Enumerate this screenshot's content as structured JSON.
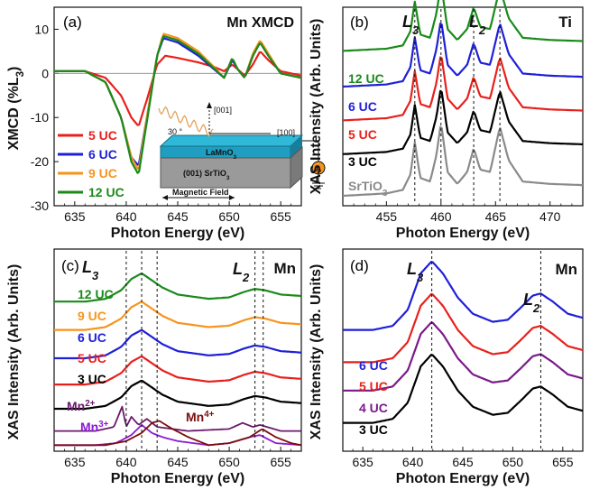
{
  "figure": {
    "panel_a": {
      "letter": "(a)",
      "title": "Mn XMCD",
      "ylabel": "XMCD (%L",
      "ylabel_sub": "3",
      "ylabel_end": ")",
      "xlabel": "Photon Energy (eV)",
      "xticks": [
        "635",
        "640",
        "645",
        "650",
        "655"
      ],
      "yticks": [
        "10",
        "0",
        "-10",
        "-20",
        "-30"
      ],
      "legend": [
        "5 UC",
        "6 UC",
        "9 UC",
        "12 UC"
      ],
      "inset": {
        "film": "LaMnO",
        "film_sub": "3",
        "substrate": "(001) SrTiO",
        "substrate_sub": "3",
        "dir_001": "[001]",
        "dir_100": "[100]",
        "angle": "30 °",
        "field": "Magnetic Field",
        "ammeter": "A"
      }
    },
    "panel_b": {
      "letter": "(b)",
      "element": "Ti",
      "edge1": "L",
      "edge1_sub": "3",
      "edge2": "L",
      "edge2_sub": "2",
      "ylabel": "XAS Intensity (Arb. Units)",
      "xlabel": "Photon Energy (eV)",
      "xticks": [
        "455",
        "460",
        "465",
        "470"
      ],
      "labels": [
        "12 UC",
        "6 UC",
        "5 UC",
        "3 UC",
        "SrTiO"
      ],
      "sto_sub": "3"
    },
    "panel_c": {
      "letter": "(c)",
      "element": "Mn",
      "edge1": "L",
      "edge1_sub": "3",
      "edge2": "L",
      "edge2_sub": "2",
      "ylabel": "XAS Intensity (Arb. Units)",
      "xlabel": "Photon Energy (eV)",
      "xticks": [
        "635",
        "640",
        "645",
        "650",
        "655"
      ],
      "labels": [
        "12 UC",
        "9 UC",
        "6 UC",
        "5 UC",
        "3 UC"
      ],
      "refs": [
        "Mn",
        "2+",
        "Mn",
        "3+",
        "Mn",
        "4+"
      ]
    },
    "panel_d": {
      "letter": "(d)",
      "element": "Mn",
      "edge1": "L",
      "edge1_sub": "3",
      "edge2": "L",
      "edge2_sub": "2",
      "ylabel": "XAS Intensity (Arb. Units)",
      "xlabel": "Photon Energy (eV)",
      "xticks": [
        "635",
        "640",
        "645",
        "650",
        "655"
      ],
      "labels": [
        "6 UC",
        "5 UC",
        "4 UC",
        "3 UC"
      ]
    }
  },
  "colors": {
    "5uc": "#e8201c",
    "6uc": "#1f1fd8",
    "9uc": "#f7941d",
    "12uc": "#1a8a1a",
    "3uc": "#000000",
    "sto": "#8a8a8a",
    "4uc": "#7a1a8a",
    "mn2": "#6b1a6b",
    "mn3": "#8a1ad6",
    "mn4": "#7a0d0d"
  },
  "chart_data": [
    {
      "type": "line",
      "panel": "a",
      "title": "Mn XMCD",
      "xlabel": "Photon Energy (eV)",
      "ylabel": "XMCD (%L3)",
      "xlim": [
        633,
        657
      ],
      "ylim": [
        -30,
        15
      ],
      "series": [
        {
          "name": "5 UC",
          "color": "#e8201c",
          "points": [
            [
              633,
              0.5
            ],
            [
              636,
              0.5
            ],
            [
              638,
              -1
            ],
            [
              639.5,
              -5
            ],
            [
              640.5,
              -10
            ],
            [
              641.2,
              -12
            ],
            [
              642,
              -6
            ],
            [
              643,
              2
            ],
            [
              643.8,
              4
            ],
            [
              645,
              3.5
            ],
            [
              647,
              2.5
            ],
            [
              648.5,
              1.5
            ],
            [
              649.5,
              0.5
            ],
            [
              650.3,
              2
            ],
            [
              650.8,
              1
            ],
            [
              651.5,
              -0.5
            ],
            [
              652.3,
              2
            ],
            [
              653,
              5
            ],
            [
              653.8,
              3
            ],
            [
              655,
              0.5
            ],
            [
              657,
              -0.5
            ]
          ]
        },
        {
          "name": "6 UC",
          "color": "#1f1fd8",
          "points": [
            [
              633,
              0.5
            ],
            [
              636,
              0.5
            ],
            [
              638,
              -2
            ],
            [
              639.5,
              -10
            ],
            [
              640.5,
              -19
            ],
            [
              641.2,
              -21
            ],
            [
              642,
              -10
            ],
            [
              643,
              4
            ],
            [
              643.6,
              8
            ],
            [
              645,
              7
            ],
            [
              647,
              4
            ],
            [
              648.5,
              1
            ],
            [
              649.5,
              -1
            ],
            [
              650.3,
              3
            ],
            [
              650.8,
              1
            ],
            [
              651.5,
              -1
            ],
            [
              652.3,
              4
            ],
            [
              653,
              7
            ],
            [
              653.8,
              4
            ],
            [
              655,
              0
            ],
            [
              657,
              -1
            ]
          ]
        },
        {
          "name": "9 UC",
          "color": "#f7941d",
          "points": [
            [
              633,
              0.5
            ],
            [
              636,
              0.5
            ],
            [
              638,
              -2
            ],
            [
              639.5,
              -10
            ],
            [
              640.5,
              -19
            ],
            [
              641.2,
              -22
            ],
            [
              642,
              -10
            ],
            [
              643,
              4
            ],
            [
              643.6,
              9
            ],
            [
              645,
              8
            ],
            [
              647,
              5
            ],
            [
              648.5,
              1.5
            ],
            [
              649.5,
              -1
            ],
            [
              650.3,
              3.5
            ],
            [
              650.8,
              1
            ],
            [
              651.5,
              -1
            ],
            [
              652.3,
              4.5
            ],
            [
              653,
              7.5
            ],
            [
              653.8,
              4.5
            ],
            [
              655,
              0
            ],
            [
              657,
              -1
            ]
          ]
        },
        {
          "name": "12 UC",
          "color": "#1a8a1a",
          "points": [
            [
              633,
              0.5
            ],
            [
              636,
              0.5
            ],
            [
              638,
              -2
            ],
            [
              639.5,
              -10
            ],
            [
              640.5,
              -20
            ],
            [
              641.2,
              -23
            ],
            [
              642,
              -11
            ],
            [
              643,
              4
            ],
            [
              643.6,
              8.5
            ],
            [
              645,
              7.5
            ],
            [
              647,
              4.5
            ],
            [
              648.5,
              1.2
            ],
            [
              649.5,
              -1
            ],
            [
              650.3,
              3.5
            ],
            [
              650.8,
              1
            ],
            [
              651.5,
              -1
            ],
            [
              652.3,
              4
            ],
            [
              653,
              7
            ],
            [
              653.8,
              4
            ],
            [
              655,
              0
            ],
            [
              657,
              -1
            ]
          ]
        }
      ]
    },
    {
      "type": "line",
      "panel": "b",
      "element": "Ti",
      "xlabel": "Photon Energy (eV)",
      "ylabel": "XAS Intensity (Arb. Units)",
      "xlim": [
        451,
        473
      ],
      "markers": [
        457.6,
        460.0,
        463.0,
        465.4
      ],
      "series": [
        {
          "name": "12 UC",
          "color": "#1a8a1a",
          "offset": 0.78,
          "scale": 1.0
        },
        {
          "name": "6 UC",
          "color": "#1f1fd8",
          "offset": 0.6,
          "scale": 1.0
        },
        {
          "name": "5 UC",
          "color": "#e8201c",
          "offset": 0.43,
          "scale": 1.0
        },
        {
          "name": "3 UC",
          "color": "#000000",
          "offset": 0.26,
          "scale": 1.0
        },
        {
          "name": "SrTiO3",
          "color": "#8a8a8a",
          "offset": 0.05,
          "scale": 1.0
        }
      ],
      "profile": [
        [
          451,
          0.0
        ],
        [
          455,
          0.02
        ],
        [
          456.5,
          0.05
        ],
        [
          457.2,
          0.18
        ],
        [
          457.6,
          0.45
        ],
        [
          458.1,
          0.15
        ],
        [
          459,
          0.12
        ],
        [
          459.6,
          0.35
        ],
        [
          460.0,
          0.62
        ],
        [
          460.6,
          0.2
        ],
        [
          461.5,
          0.1
        ],
        [
          462.4,
          0.2
        ],
        [
          463.0,
          0.4
        ],
        [
          463.6,
          0.22
        ],
        [
          464.5,
          0.2
        ],
        [
          465.4,
          0.58
        ],
        [
          466.2,
          0.3
        ],
        [
          467.5,
          0.12
        ],
        [
          470,
          0.1
        ],
        [
          473,
          0.09
        ]
      ]
    },
    {
      "type": "line",
      "panel": "c",
      "element": "Mn",
      "xlabel": "Photon Energy (eV)",
      "ylabel": "XAS Intensity (Arb. Units)",
      "xlim": [
        633,
        657
      ],
      "markers": [
        640.0,
        641.5,
        643.0,
        652.5,
        653.3
      ],
      "series": [
        {
          "name": "12 UC",
          "color": "#1a8a1a",
          "offset": 0.74
        },
        {
          "name": "9 UC",
          "color": "#f7941d",
          "offset": 0.6
        },
        {
          "name": "6 UC",
          "color": "#1f1fd8",
          "offset": 0.46
        },
        {
          "name": "5 UC",
          "color": "#e8201c",
          "offset": 0.33
        },
        {
          "name": "3 UC",
          "color": "#000000",
          "offset": 0.21
        }
      ],
      "profile": [
        [
          633,
          0.0
        ],
        [
          636,
          0.0
        ],
        [
          638,
          0.02
        ],
        [
          639.5,
          0.08
        ],
        [
          640.5,
          0.16
        ],
        [
          641.5,
          0.2
        ],
        [
          642.3,
          0.16
        ],
        [
          643.5,
          0.1
        ],
        [
          645,
          0.05
        ],
        [
          648,
          0.02
        ],
        [
          650,
          0.03
        ],
        [
          651.5,
          0.07
        ],
        [
          652.5,
          0.09
        ],
        [
          653.5,
          0.08
        ],
        [
          655,
          0.05
        ],
        [
          657,
          0.04
        ]
      ],
      "references": [
        {
          "name": "Mn2+",
          "color": "#6b1a6b",
          "offset": 0.1,
          "points": [
            [
              633,
              0.0
            ],
            [
              637,
              0.0
            ],
            [
              638.8,
              0.02
            ],
            [
              639.6,
              0.12
            ],
            [
              640.0,
              0.02
            ],
            [
              640.5,
              0.07
            ],
            [
              641.2,
              0.03
            ],
            [
              642,
              0.06
            ],
            [
              643,
              0.02
            ],
            [
              646,
              0.0
            ],
            [
              650,
              0.01
            ],
            [
              651.3,
              0.04
            ],
            [
              652.3,
              0.02
            ],
            [
              653,
              0.03
            ],
            [
              655,
              0.0
            ],
            [
              657,
              0.0
            ]
          ]
        },
        {
          "name": "Mn3+",
          "color": "#8a1ad6",
          "offset": 0.03,
          "points": [
            [
              633,
              0.0
            ],
            [
              637,
              0.0
            ],
            [
              639,
              0.01
            ],
            [
              640.5,
              0.05
            ],
            [
              641.5,
              0.1
            ],
            [
              642.5,
              0.06
            ],
            [
              643.5,
              0.04
            ],
            [
              645,
              0.02
            ],
            [
              648,
              0.0
            ],
            [
              650,
              0.01
            ],
            [
              652,
              0.04
            ],
            [
              653,
              0.05
            ],
            [
              654.5,
              0.01
            ],
            [
              657,
              0.0
            ]
          ]
        },
        {
          "name": "Mn4+",
          "color": "#7a0d0d",
          "offset": 0.03,
          "points": [
            [
              633,
              0.0
            ],
            [
              638,
              0.0
            ],
            [
              640,
              0.02
            ],
            [
              641.5,
              0.06
            ],
            [
              642.5,
              0.11
            ],
            [
              643.2,
              0.12
            ],
            [
              644.5,
              0.08
            ],
            [
              646,
              0.04
            ],
            [
              648,
              0.0
            ],
            [
              650,
              0.01
            ],
            [
              652,
              0.04
            ],
            [
              653.2,
              0.08
            ],
            [
              654.5,
              0.04
            ],
            [
              656,
              0.01
            ],
            [
              657,
              0.0
            ]
          ]
        }
      ]
    },
    {
      "type": "line",
      "panel": "d",
      "element": "Mn",
      "xlabel": "Photon Energy (eV)",
      "ylabel": "XAS Intensity (Arb. Units)",
      "xlim": [
        633,
        657
      ],
      "markers": [
        641.9,
        652.8
      ],
      "series": [
        {
          "name": "6 UC",
          "color": "#1f1fd8",
          "offset": 0.6
        },
        {
          "name": "5 UC",
          "color": "#e8201c",
          "offset": 0.44
        },
        {
          "name": "4 UC",
          "color": "#7a1a8a",
          "offset": 0.3
        },
        {
          "name": "3 UC",
          "color": "#000000",
          "offset": 0.14
        }
      ],
      "profile": [
        [
          633,
          0.0
        ],
        [
          636,
          0.0
        ],
        [
          638,
          0.02
        ],
        [
          639.5,
          0.1
        ],
        [
          640.8,
          0.28
        ],
        [
          641.9,
          0.34
        ],
        [
          643,
          0.28
        ],
        [
          644.5,
          0.16
        ],
        [
          646,
          0.08
        ],
        [
          648,
          0.04
        ],
        [
          649.5,
          0.05
        ],
        [
          650.8,
          0.11
        ],
        [
          652,
          0.17
        ],
        [
          652.8,
          0.18
        ],
        [
          654,
          0.14
        ],
        [
          655.5,
          0.08
        ],
        [
          657,
          0.06
        ]
      ]
    }
  ]
}
